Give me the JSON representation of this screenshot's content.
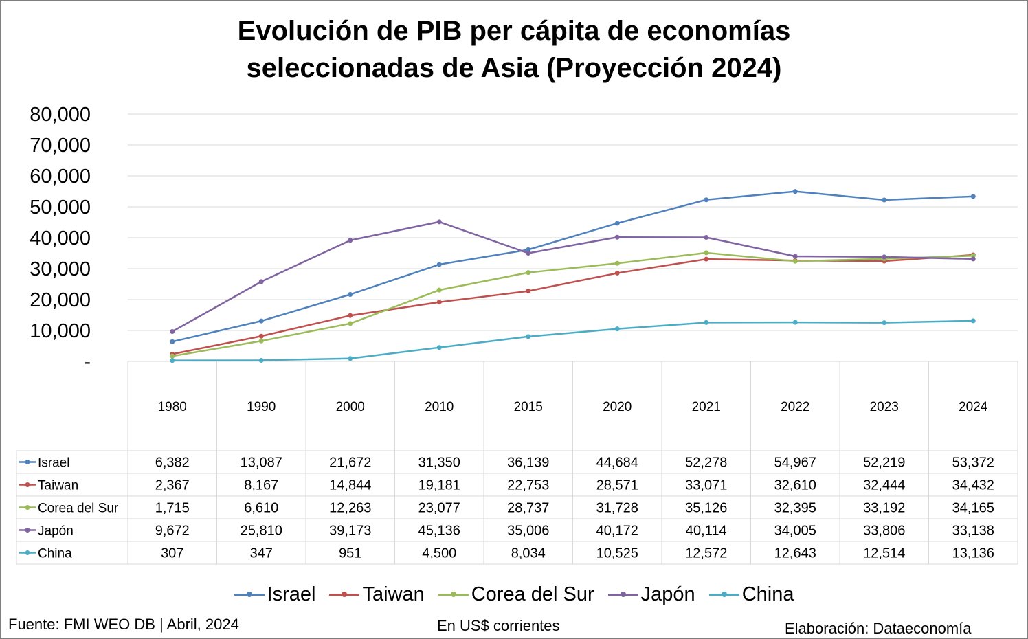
{
  "chart_data": {
    "type": "line",
    "title": "Evolución de PIB per cápita de economías seleccionadas de Asia (Proyección 2024)",
    "title_lines": [
      "Evolución de PIB per cápita de economías",
      "seleccionadas de Asia (Proyección 2024)"
    ],
    "categories": [
      "1980",
      "1990",
      "2000",
      "2010",
      "2015",
      "2020",
      "2021",
      "2022",
      "2023",
      "2024"
    ],
    "ylim": [
      0,
      80000
    ],
    "yticks": [
      0,
      10000,
      20000,
      30000,
      40000,
      50000,
      60000,
      70000,
      80000
    ],
    "ytick_labels": [
      "-",
      "10,000",
      "20,000",
      "30,000",
      "40,000",
      "50,000",
      "60,000",
      "70,000",
      "80,000"
    ],
    "grid": true,
    "legend_position": "bottom",
    "data_table": true,
    "series": [
      {
        "name": "Israel",
        "color": "#4f81bd",
        "values": [
          6382,
          13087,
          21672,
          31350,
          36139,
          44684,
          52278,
          54967,
          52219,
          53372
        ],
        "labels": [
          "6,382",
          "13,087",
          "21,672",
          "31,350",
          "36,139",
          "44,684",
          "52,278",
          "54,967",
          "52,219",
          "53,372"
        ]
      },
      {
        "name": "Taiwan",
        "color": "#c0504d",
        "values": [
          2367,
          8167,
          14844,
          19181,
          22753,
          28571,
          33071,
          32610,
          32444,
          34432
        ],
        "labels": [
          "2,367",
          "8,167",
          "14,844",
          "19,181",
          "22,753",
          "28,571",
          "33,071",
          "32,610",
          "32,444",
          "34,432"
        ]
      },
      {
        "name": "Corea del Sur",
        "color": "#9bbb59",
        "values": [
          1715,
          6610,
          12263,
          23077,
          28737,
          31728,
          35126,
          32395,
          33192,
          34165
        ],
        "labels": [
          "1,715",
          "6,610",
          "12,263",
          "23,077",
          "28,737",
          "31,728",
          "35,126",
          "32,395",
          "33,192",
          "34,165"
        ]
      },
      {
        "name": "Japón",
        "color": "#8064a2",
        "values": [
          9672,
          25810,
          39173,
          45136,
          35006,
          40172,
          40114,
          34005,
          33806,
          33138
        ],
        "labels": [
          "9,672",
          "25,810",
          "39,173",
          "45,136",
          "35,006",
          "40,172",
          "40,114",
          "34,005",
          "33,806",
          "33,138"
        ]
      },
      {
        "name": "China",
        "color": "#4bacc6",
        "values": [
          307,
          347,
          951,
          4500,
          8034,
          10525,
          12572,
          12643,
          12514,
          13136
        ],
        "labels": [
          "307",
          "347",
          "951",
          "4,500",
          "8,034",
          "10,525",
          "12,572",
          "12,643",
          "12,514",
          "13,136"
        ]
      }
    ]
  },
  "footer": {
    "source": "Fuente: FMI WEO DB | Abril, 2024",
    "units": "En US$ corrientes",
    "credit": "Elaboración: Dataeconomía"
  }
}
